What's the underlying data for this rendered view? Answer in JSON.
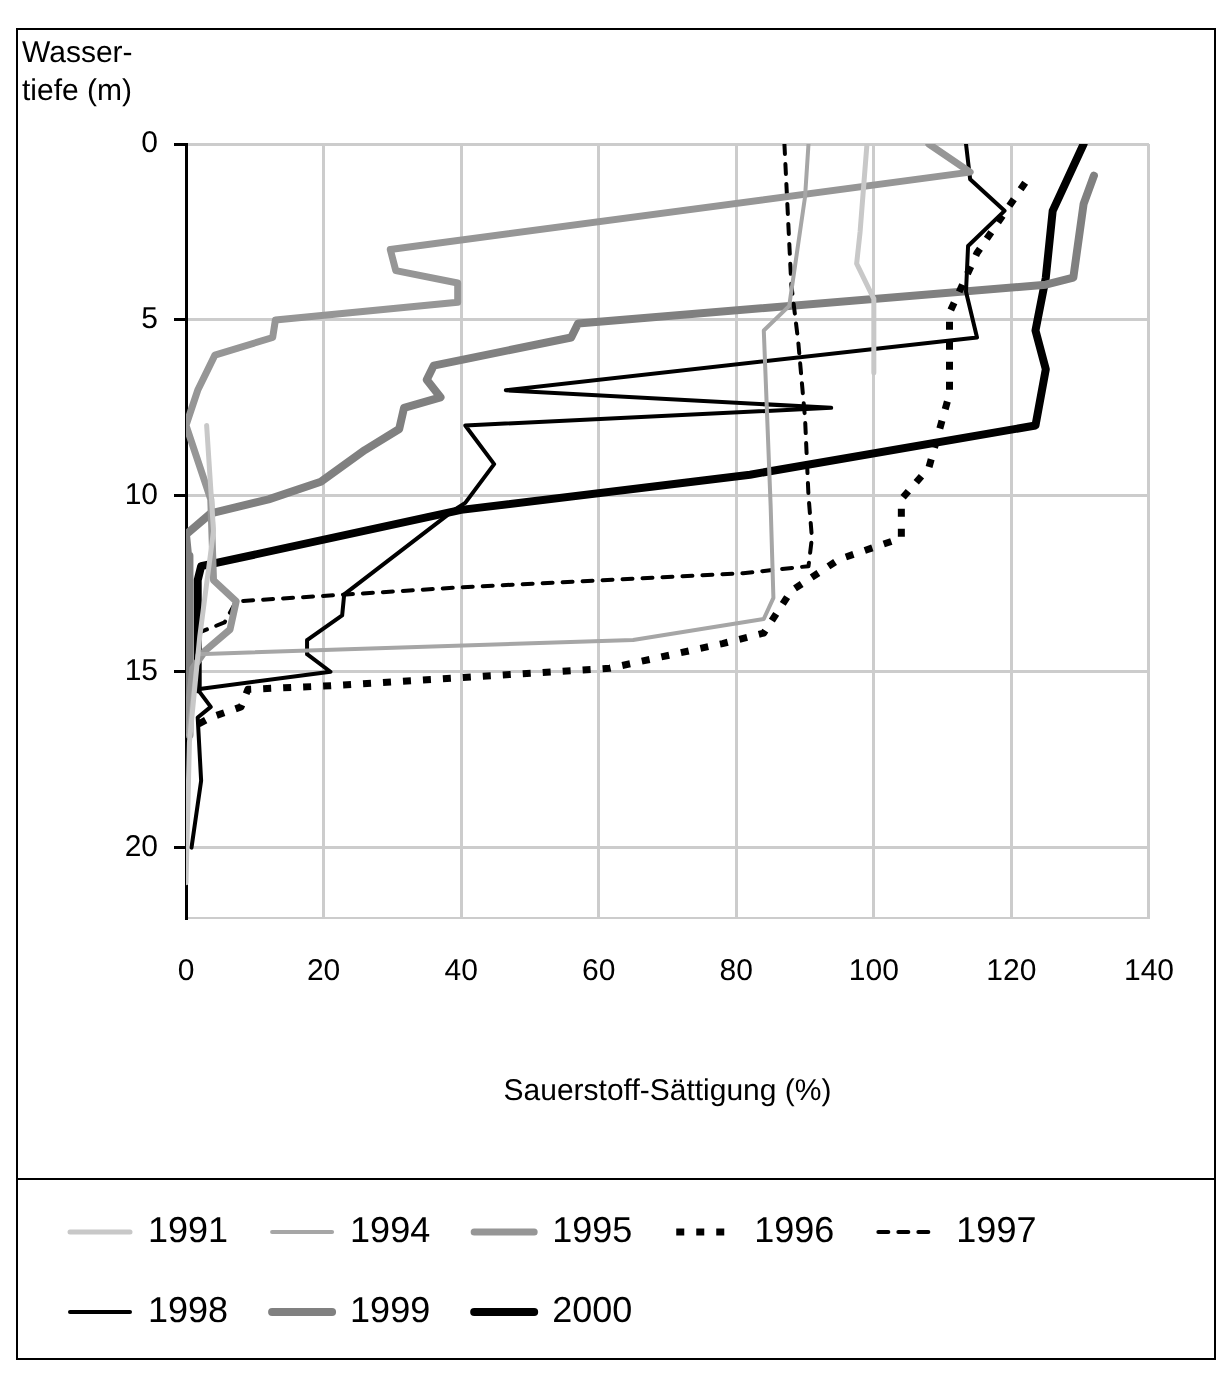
{
  "chart_data": {
    "type": "line",
    "xlabel": "Sauerstoff-Sättigung (%)",
    "ylabel": "Wasser-\ntiefe (m)",
    "xlim": [
      0,
      140
    ],
    "xticks": [
      0,
      20,
      40,
      60,
      80,
      100,
      120,
      140
    ],
    "ylim": [
      22,
      0
    ],
    "yticks": [
      0,
      5,
      10,
      15,
      20
    ],
    "grid": true,
    "legend": "bottom",
    "marker": "none",
    "series": [
      {
        "name": "1991",
        "color": "#c8c8c8",
        "x": [
          99,
          98,
          97.5,
          100,
          100,
          null,
          3,
          4,
          2,
          0.5,
          0
        ],
        "values": [
          0,
          2.5,
          3.4,
          4.4,
          6.5,
          null,
          8,
          11,
          14,
          17,
          21
        ]
      },
      {
        "name": "1994",
        "color": "#a6a6a6",
        "x": [
          90.5,
          90,
          87.7,
          84,
          85,
          85.4,
          84,
          65,
          1.7,
          0.3
        ],
        "values": [
          0,
          1.5,
          4.6,
          5.3,
          10.3,
          12.9,
          13.5,
          14.1,
          14.5,
          16.8
        ]
      },
      {
        "name": "1995",
        "color": "#969696",
        "x": [
          108,
          114,
          29.7,
          30.5,
          39.5,
          39.5,
          13,
          12.6,
          4.2,
          1.7,
          0,
          3.6,
          4,
          7.3,
          6.4,
          2.8,
          1,
          0
        ],
        "values": [
          0,
          0.8,
          3,
          3.6,
          3.95,
          4.5,
          5,
          5.5,
          6,
          7,
          8,
          10.1,
          12.4,
          13,
          13.8,
          14.4,
          14.9,
          16.6
        ]
      },
      {
        "name": "1996",
        "color": "#000000",
        "line_style": "dotted",
        "x": [
          122,
          115,
          111,
          111,
          108,
          104,
          104,
          95,
          88,
          84,
          78,
          61.6,
          21,
          9,
          8,
          3.6,
          1.7
        ],
        "values": [
          1.1,
          3.1,
          4.8,
          7.1,
          9.2,
          10.1,
          11.2,
          11.8,
          12.7,
          13.9,
          14.2,
          14.9,
          15.4,
          15.5,
          16,
          16.3,
          16.5
        ]
      },
      {
        "name": "1997",
        "color": "#000000",
        "line_style": "dashed",
        "x": [
          87,
          87.5,
          88,
          89,
          90,
          90.5,
          91,
          90.5,
          81,
          40,
          7.3,
          5.6,
          1.7
        ],
        "values": [
          0,
          2,
          4,
          5.6,
          7.8,
          10,
          11.2,
          12,
          12.2,
          12.6,
          13,
          13.6,
          13.9
        ]
      },
      {
        "name": "1998",
        "color": "#000000",
        "x": [
          113.4,
          114,
          119,
          113.7,
          113.4,
          115,
          46.5,
          93.8,
          40.6,
          44.8,
          40.6,
          39,
          23,
          22.7,
          17.6,
          17.6,
          21,
          1.7,
          3.6,
          1.7,
          2.2,
          0.8
        ],
        "values": [
          0,
          1,
          1.9,
          2.9,
          4.2,
          5.5,
          7,
          7.5,
          8,
          9.1,
          10.2,
          10.4,
          12.8,
          13.4,
          14.1,
          14.5,
          15,
          15.5,
          16,
          16.3,
          18.1,
          20
        ]
      },
      {
        "name": "1999",
        "color": "#808080",
        "x": [
          132,
          130.5,
          129,
          125,
          57,
          56,
          36,
          35,
          37,
          31.7,
          31,
          26,
          19.6,
          12,
          3.6,
          0,
          0.3,
          0.5
        ],
        "values": [
          0.9,
          1.7,
          3.8,
          4,
          5.1,
          5.5,
          6.3,
          6.7,
          7.2,
          7.5,
          8.1,
          8.7,
          9.6,
          10.1,
          10.5,
          11.1,
          11.7,
          16.8
        ]
      },
      {
        "name": "2000",
        "color": "#000000",
        "x": [
          130.5,
          126,
          125,
          123.5,
          125,
          123.5,
          82,
          40,
          2.2,
          1.7,
          1.7
        ],
        "values": [
          0,
          1.9,
          3.8,
          5.3,
          6.4,
          8,
          9.4,
          10.4,
          12,
          12.4,
          15.5
        ]
      }
    ]
  }
}
